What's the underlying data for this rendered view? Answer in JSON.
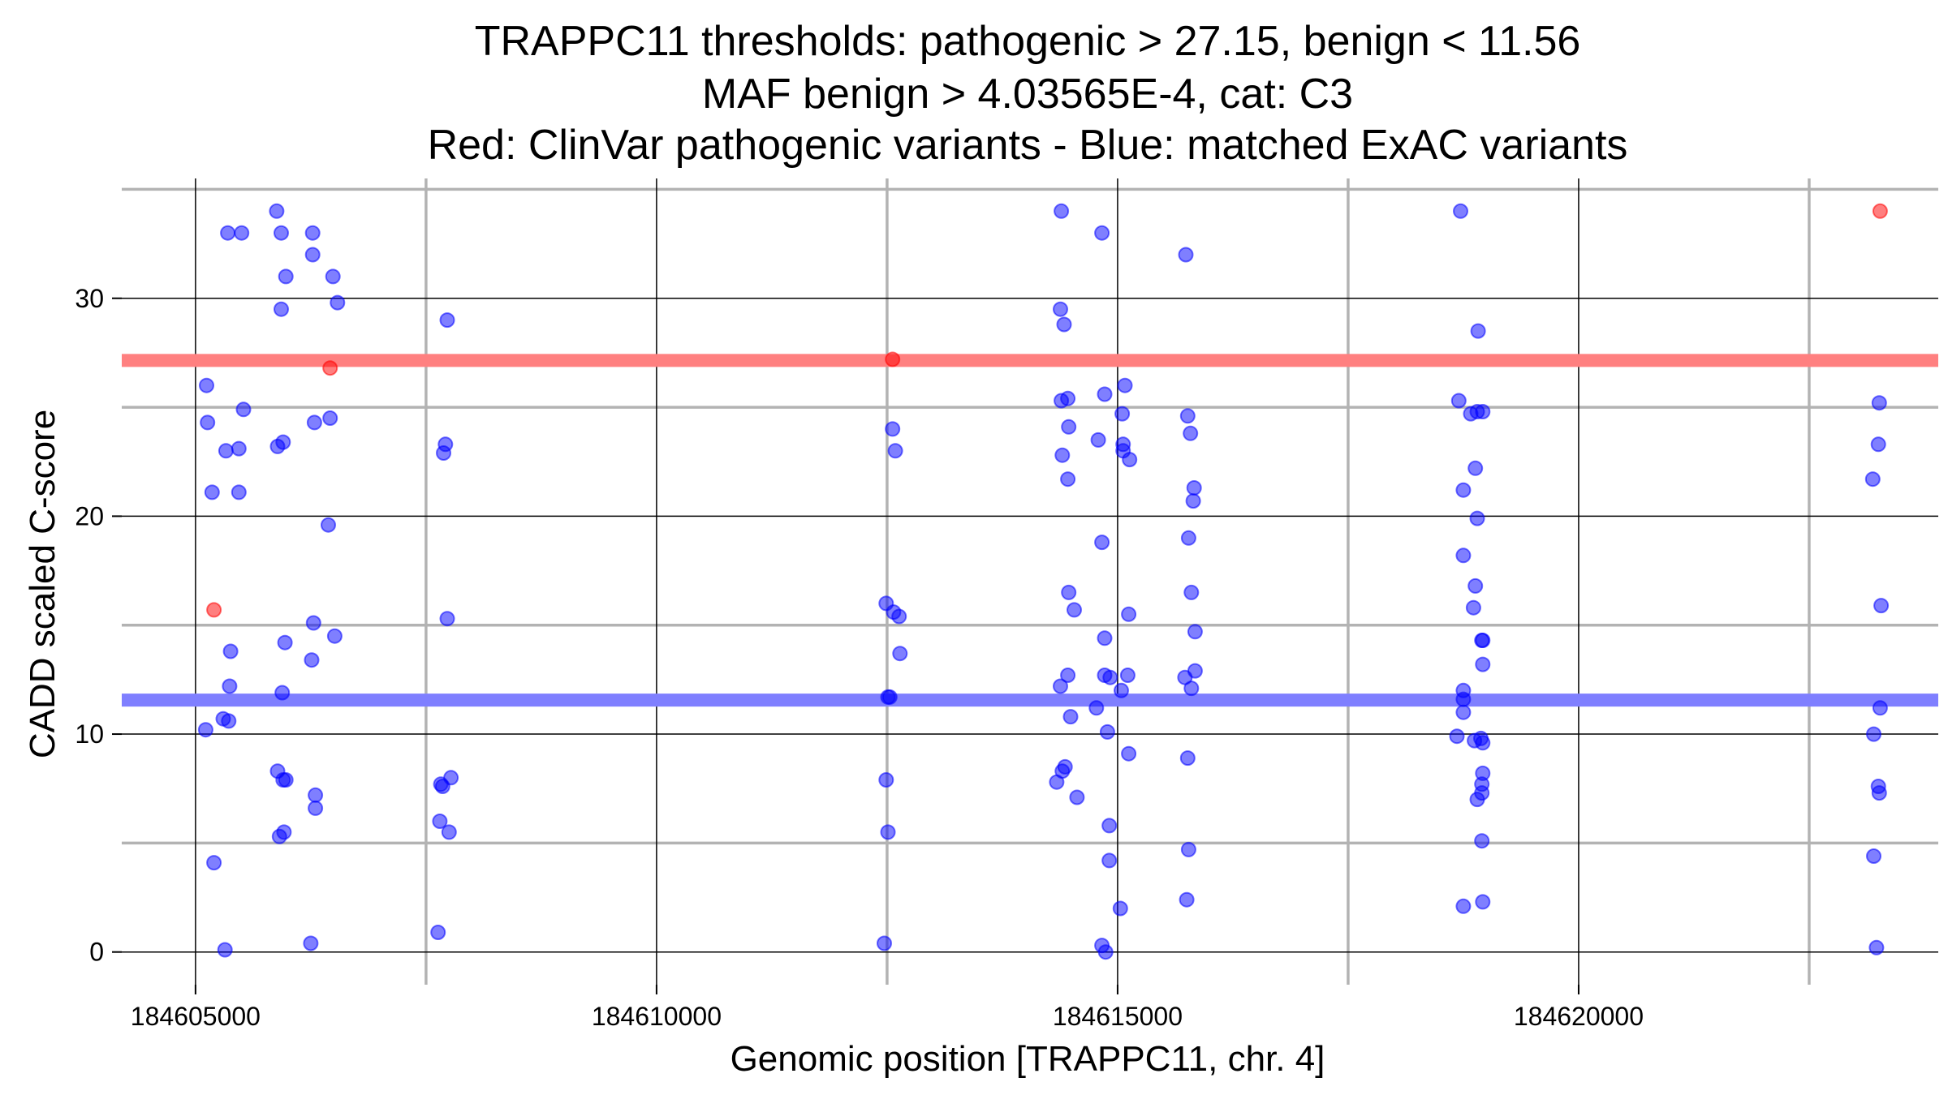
{
  "chart_data": {
    "type": "scatter",
    "title_lines": [
      "TRAPPC11 thresholds: pathogenic > 27.15, benign < 11.56",
      "MAF benign > 4.03565E-4, cat: C3",
      "Red: ClinVar pathogenic variants - Blue: matched ExAC variants"
    ],
    "xlabel": "Genomic position [TRAPPC11, chr. 4]",
    "ylabel": "CADD scaled C-score",
    "xlim": [
      184604200,
      184623900
    ],
    "ylim": [
      -1.5,
      35.5
    ],
    "x_ticks": [
      184605000,
      184610000,
      184615000,
      184620000
    ],
    "x_ticks_minor": [
      184607500,
      184612500,
      184617500,
      184622500
    ],
    "y_ticks": [
      0,
      10,
      20,
      30
    ],
    "y_ticks_minor": [
      5,
      15,
      25,
      35
    ],
    "grid": true,
    "thresholds": [
      {
        "value": 27.15,
        "color": "#ff8080"
      },
      {
        "value": 11.56,
        "color": "#7f7fff"
      }
    ],
    "series": [
      {
        "color": "#ff0000",
        "points": [
          [
            184605200,
            15.7
          ],
          [
            184606460,
            26.8
          ],
          [
            184612560,
            27.2
          ],
          [
            184623270,
            34.0
          ]
        ]
      },
      {
        "color": "#0000ff",
        "points": [
          [
            184605350,
            33.0
          ],
          [
            184605500,
            33.0
          ],
          [
            184605880,
            34.0
          ],
          [
            184605930,
            33.0
          ],
          [
            184606270,
            33.0
          ],
          [
            184606270,
            32.0
          ],
          [
            184605980,
            31.0
          ],
          [
            184606490,
            31.0
          ],
          [
            184605930,
            29.5
          ],
          [
            184606540,
            29.8
          ],
          [
            184607730,
            29.0
          ],
          [
            184605120,
            26.0
          ],
          [
            184605520,
            24.9
          ],
          [
            184605130,
            24.3
          ],
          [
            184605950,
            23.4
          ],
          [
            184605890,
            23.2
          ],
          [
            184605470,
            23.1
          ],
          [
            184605330,
            23.0
          ],
          [
            184605180,
            21.1
          ],
          [
            184605470,
            21.1
          ],
          [
            184606290,
            24.3
          ],
          [
            184606460,
            24.5
          ],
          [
            184606440,
            19.6
          ],
          [
            184607710,
            23.3
          ],
          [
            184607690,
            22.9
          ],
          [
            184607730,
            15.3
          ],
          [
            184606280,
            15.1
          ],
          [
            184605970,
            14.2
          ],
          [
            184606510,
            14.5
          ],
          [
            184605380,
            13.8
          ],
          [
            184606260,
            13.4
          ],
          [
            184605370,
            12.2
          ],
          [
            184605940,
            11.9
          ],
          [
            184605300,
            10.7
          ],
          [
            184605360,
            10.6
          ],
          [
            184605110,
            10.2
          ],
          [
            184605890,
            8.3
          ],
          [
            184605950,
            7.9
          ],
          [
            184605980,
            7.9
          ],
          [
            184606300,
            7.2
          ],
          [
            184606300,
            6.6
          ],
          [
            184605960,
            5.5
          ],
          [
            184605910,
            5.3
          ],
          [
            184607660,
            7.7
          ],
          [
            184607680,
            7.6
          ],
          [
            184607770,
            8.0
          ],
          [
            184607650,
            6.0
          ],
          [
            184607750,
            5.5
          ],
          [
            184605200,
            4.1
          ],
          [
            184606250,
            0.4
          ],
          [
            184605320,
            0.1
          ],
          [
            184607630,
            0.9
          ],
          [
            184612560,
            24.0
          ],
          [
            184612590,
            23.0
          ],
          [
            184612490,
            16.0
          ],
          [
            184612570,
            15.6
          ],
          [
            184612630,
            15.4
          ],
          [
            184612640,
            13.7
          ],
          [
            184612510,
            11.7
          ],
          [
            184612530,
            11.7
          ],
          [
            184612490,
            7.9
          ],
          [
            184612510,
            5.5
          ],
          [
            184612470,
            0.4
          ],
          [
            184614390,
            34.0
          ],
          [
            184614380,
            29.5
          ],
          [
            184614420,
            28.8
          ],
          [
            184614390,
            25.3
          ],
          [
            184614460,
            25.4
          ],
          [
            184614470,
            24.1
          ],
          [
            184614400,
            22.8
          ],
          [
            184614460,
            21.7
          ],
          [
            184614470,
            16.5
          ],
          [
            184614530,
            15.7
          ],
          [
            184614460,
            12.7
          ],
          [
            184614380,
            12.2
          ],
          [
            184614490,
            10.8
          ],
          [
            184614400,
            8.3
          ],
          [
            184614430,
            8.5
          ],
          [
            184614340,
            7.8
          ],
          [
            184614560,
            7.1
          ],
          [
            184614830,
            33.0
          ],
          [
            184614860,
            25.6
          ],
          [
            184614790,
            23.5
          ],
          [
            184614830,
            18.8
          ],
          [
            184614860,
            14.4
          ],
          [
            184614860,
            12.7
          ],
          [
            184614920,
            12.6
          ],
          [
            184614770,
            11.2
          ],
          [
            184614890,
            10.1
          ],
          [
            184614910,
            5.8
          ],
          [
            184614910,
            4.2
          ],
          [
            184614830,
            0.3
          ],
          [
            184614870,
            0.0
          ],
          [
            184615080,
            26.0
          ],
          [
            184615050,
            24.7
          ],
          [
            184615060,
            23.3
          ],
          [
            184615060,
            23.0
          ],
          [
            184615130,
            22.6
          ],
          [
            184615120,
            15.5
          ],
          [
            184615110,
            12.7
          ],
          [
            184615040,
            12.0
          ],
          [
            184615120,
            9.1
          ],
          [
            184615030,
            2.0
          ],
          [
            184615740,
            32.0
          ],
          [
            184615760,
            24.6
          ],
          [
            184615790,
            23.8
          ],
          [
            184615830,
            21.3
          ],
          [
            184615820,
            20.7
          ],
          [
            184615770,
            19.0
          ],
          [
            184615800,
            16.5
          ],
          [
            184615840,
            14.7
          ],
          [
            184615840,
            12.9
          ],
          [
            184615730,
            12.6
          ],
          [
            184615800,
            12.1
          ],
          [
            184615760,
            8.9
          ],
          [
            184615770,
            4.7
          ],
          [
            184615750,
            2.4
          ],
          [
            184618720,
            34.0
          ],
          [
            184618700,
            25.3
          ],
          [
            184618900,
            24.8
          ],
          [
            184618960,
            24.8
          ],
          [
            184618830,
            24.7
          ],
          [
            184618910,
            28.5
          ],
          [
            184618880,
            22.2
          ],
          [
            184618750,
            21.2
          ],
          [
            184618900,
            19.9
          ],
          [
            184618750,
            18.2
          ],
          [
            184618880,
            16.8
          ],
          [
            184618860,
            15.8
          ],
          [
            184618950,
            14.3
          ],
          [
            184618960,
            14.3
          ],
          [
            184618960,
            13.2
          ],
          [
            184618750,
            12.0
          ],
          [
            184618750,
            11.6
          ],
          [
            184618750,
            11.0
          ],
          [
            184618680,
            9.9
          ],
          [
            184618870,
            9.7
          ],
          [
            184618960,
            9.6
          ],
          [
            184618940,
            9.8
          ],
          [
            184618960,
            8.2
          ],
          [
            184618950,
            7.7
          ],
          [
            184618950,
            7.3
          ],
          [
            184618900,
            7.0
          ],
          [
            184618950,
            5.1
          ],
          [
            184618750,
            2.1
          ],
          [
            184618960,
            2.3
          ],
          [
            184623260,
            25.2
          ],
          [
            184623250,
            23.3
          ],
          [
            184623190,
            21.7
          ],
          [
            184623280,
            15.9
          ],
          [
            184623270,
            11.2
          ],
          [
            184623200,
            10.0
          ],
          [
            184623250,
            7.6
          ],
          [
            184623260,
            7.3
          ],
          [
            184623200,
            4.4
          ],
          [
            184623230,
            0.2
          ]
        ]
      }
    ]
  }
}
